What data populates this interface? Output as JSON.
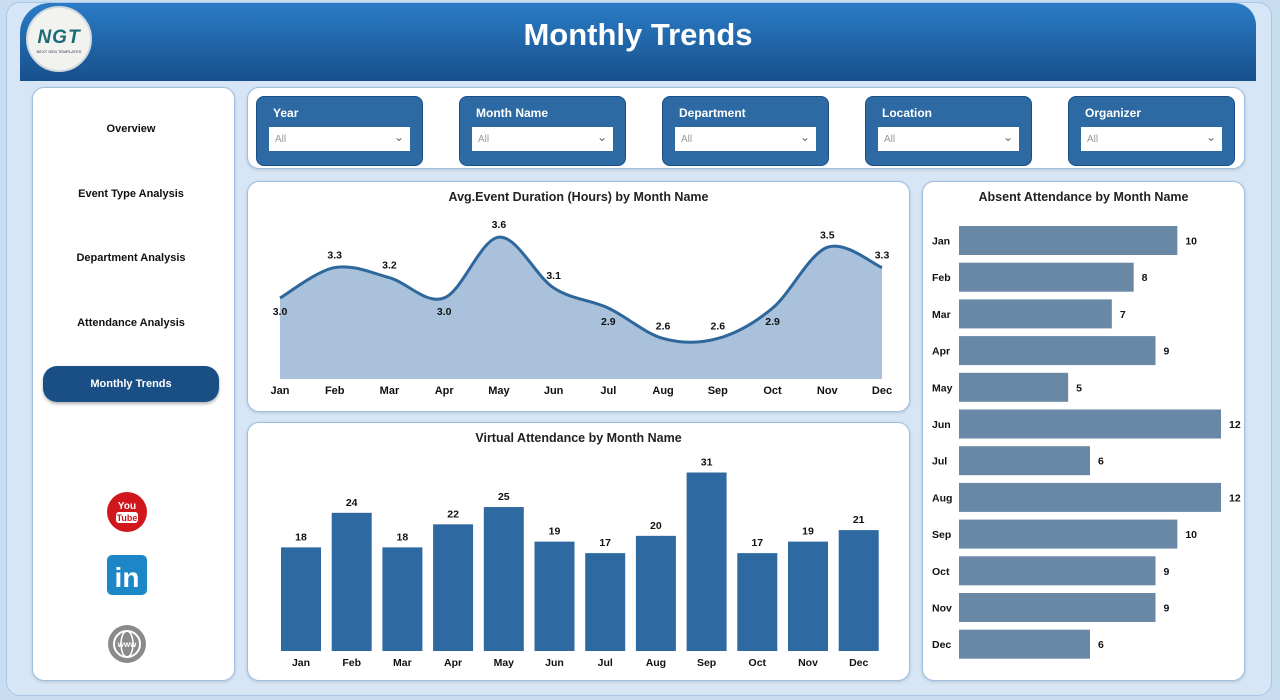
{
  "header": {
    "title": "Monthly Trends",
    "logo_text": "NGT",
    "logo_subtext": "NEXT GEN TEMPLATES"
  },
  "sidebar": {
    "items": [
      {
        "label": "Overview"
      },
      {
        "label": "Event Type Analysis"
      },
      {
        "label": "Department Analysis"
      },
      {
        "label": "Attendance Analysis"
      },
      {
        "label": "Monthly Trends",
        "active": true
      }
    ],
    "social": [
      "youtube-icon",
      "linkedin-icon",
      "globe-icon"
    ]
  },
  "filters": [
    {
      "label": "Year",
      "value": "All"
    },
    {
      "label": "Month Name",
      "value": "All"
    },
    {
      "label": "Department",
      "value": "All"
    },
    {
      "label": "Location",
      "value": "All"
    },
    {
      "label": "Organizer",
      "value": "All"
    }
  ],
  "colors": {
    "header": "#1f65ab",
    "area": "#a9c1da",
    "line": "#2e679c",
    "bar": "#2e6aa1",
    "hbar": "#6888a6"
  },
  "chart_data": [
    {
      "type": "area",
      "title": "Avg.Event Duration (Hours) by Month Name",
      "categories": [
        "Jan",
        "Feb",
        "Mar",
        "Apr",
        "May",
        "Jun",
        "Jul",
        "Aug",
        "Sep",
        "Oct",
        "Nov",
        "Dec"
      ],
      "values": [
        3.0,
        3.3,
        3.2,
        3.0,
        3.6,
        3.1,
        2.9,
        2.6,
        2.6,
        2.9,
        3.5,
        3.3
      ]
    },
    {
      "type": "bar",
      "title": "Virtual Attendance by Month Name",
      "categories": [
        "Jan",
        "Feb",
        "Mar",
        "Apr",
        "May",
        "Jun",
        "Jul",
        "Aug",
        "Sep",
        "Oct",
        "Nov",
        "Dec"
      ],
      "values": [
        18,
        24,
        18,
        22,
        25,
        19,
        17,
        20,
        31,
        17,
        19,
        21
      ]
    },
    {
      "type": "bar",
      "orientation": "horizontal",
      "title": "Absent Attendance by Month Name",
      "categories": [
        "Jan",
        "Feb",
        "Mar",
        "Apr",
        "May",
        "Jun",
        "Jul",
        "Aug",
        "Sep",
        "Oct",
        "Nov",
        "Dec"
      ],
      "values": [
        10,
        8,
        7,
        9,
        5,
        12,
        6,
        12,
        10,
        9,
        9,
        6
      ]
    }
  ]
}
